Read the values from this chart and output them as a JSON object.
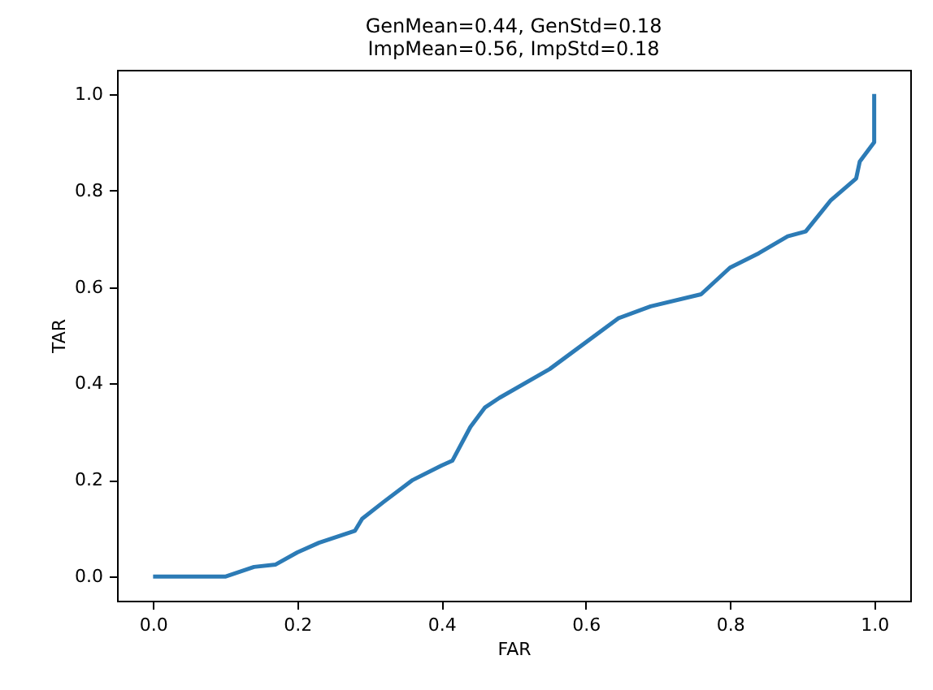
{
  "chart_data": {
    "type": "line",
    "title": [
      "GenMean=0.44, GenStd=0.18",
      "ImpMean=0.56, ImpStd=0.18"
    ],
    "xlabel": "FAR",
    "ylabel": "TAR",
    "x": [
      0,
      0.1,
      0.14,
      0.17,
      0.2,
      0.23,
      0.28,
      0.29,
      0.32,
      0.36,
      0.4,
      0.415,
      0.44,
      0.46,
      0.48,
      0.55,
      0.645,
      0.69,
      0.76,
      0.8,
      0.84,
      0.88,
      0.905,
      0.94,
      0.975,
      0.98,
      1.0,
      1.0
    ],
    "series": [
      {
        "color": "#2c7bb6",
        "values": [
          0,
          0,
          0.02,
          0.025,
          0.05,
          0.07,
          0.095,
          0.12,
          0.155,
          0.2,
          0.23,
          0.24,
          0.31,
          0.35,
          0.37,
          0.43,
          0.535,
          0.56,
          0.585,
          0.64,
          0.67,
          0.705,
          0.715,
          0.78,
          0.825,
          0.86,
          0.9,
          1.0
        ]
      }
    ],
    "xlim": [
      -0.05,
      1.05
    ],
    "ylim": [
      -0.05,
      1.05
    ],
    "xticks": [
      {
        "value": 0,
        "label": "0.0"
      },
      0.2,
      0.4,
      0.6,
      0.8,
      {
        "value": 1,
        "label": "1.0"
      }
    ],
    "yticks": [
      {
        "value": 0,
        "label": "0.0"
      },
      0.2,
      0.4,
      0.6,
      0.8,
      {
        "value": 1,
        "label": "1.0"
      }
    ],
    "grid": false
  }
}
